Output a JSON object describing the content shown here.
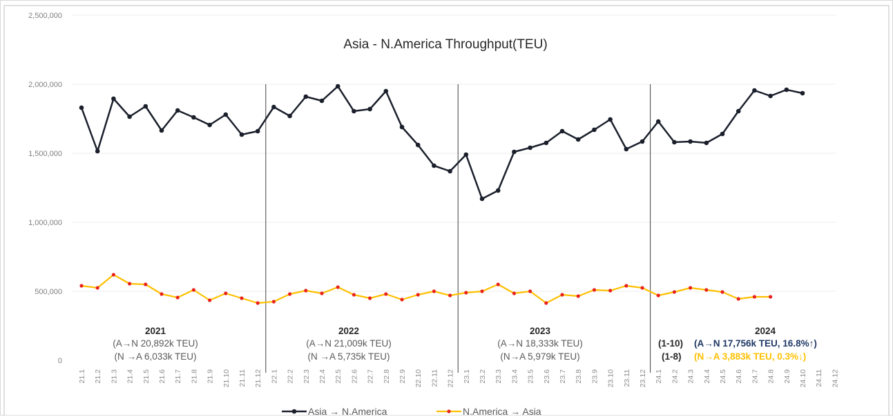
{
  "chart_data": {
    "type": "line",
    "title": "Asia - N.America Throughput(TEU)",
    "xlabel": "",
    "ylabel": "",
    "ylim": [
      0,
      2500000
    ],
    "yticks": [
      "0",
      "500,000",
      "1,000,000",
      "1,500,000",
      "2,000,000",
      "2,500,000"
    ],
    "grid": true,
    "legend_position": "bottom",
    "categories": [
      "21.1",
      "21.2",
      "21.3",
      "21.4",
      "21.5",
      "21.6",
      "21.7",
      "21.8",
      "21.9",
      "21.10",
      "21.11",
      "21.12",
      "22.1",
      "22.2",
      "22.3",
      "22.4",
      "22.5",
      "22.6",
      "22.7",
      "22.8",
      "22.9",
      "22.10",
      "22.11",
      "22.12",
      "23.1",
      "23.2",
      "23.3",
      "23.4",
      "23.5",
      "23.6",
      "23.7",
      "23.8",
      "23.9",
      "23.10",
      "23.11",
      "23.12",
      "24.1",
      "24.2",
      "24.3",
      "24.4",
      "24.5",
      "24.6",
      "24.7",
      "24.8",
      "24.9",
      "24.10",
      "24.11",
      "24.12"
    ],
    "series": [
      {
        "name": "Asia → N.America",
        "color": "#1a1f2b",
        "values": [
          1830000,
          1515000,
          1895000,
          1765000,
          1840000,
          1665000,
          1810000,
          1760000,
          1705000,
          1780000,
          1635000,
          1660000,
          1835000,
          1770000,
          1910000,
          1880000,
          1985000,
          1805000,
          1820000,
          1950000,
          1690000,
          1560000,
          1410000,
          1370000,
          1490000,
          1170000,
          1230000,
          1510000,
          1540000,
          1575000,
          1660000,
          1600000,
          1670000,
          1745000,
          1530000,
          1585000,
          1730000,
          1580000,
          1585000,
          1575000,
          1640000,
          1805000,
          1955000,
          1915000,
          1960000,
          1935000,
          null,
          null
        ]
      },
      {
        "name": "N.America → Asia",
        "color": "#ffc000",
        "marker_color": "#e8231c",
        "values": [
          540000,
          525000,
          620000,
          555000,
          550000,
          480000,
          455000,
          510000,
          435000,
          485000,
          450000,
          415000,
          425000,
          480000,
          505000,
          485000,
          530000,
          475000,
          450000,
          480000,
          440000,
          475000,
          500000,
          470000,
          490000,
          500000,
          550000,
          485000,
          500000,
          415000,
          475000,
          465000,
          510000,
          505000,
          540000,
          525000,
          470000,
          495000,
          525000,
          510000,
          495000,
          445000,
          460000,
          460000,
          null,
          null,
          null,
          null
        ]
      }
    ],
    "annotations": [
      {
        "year": "2021",
        "line1": "(A→N  20,892k TEU)",
        "line2": "(N →A   6,033k TEU)"
      },
      {
        "year": "2022",
        "line1": "(A→N  21,009k TEU)",
        "line2": "(N →A   5,735k TEU)"
      },
      {
        "year": "2023",
        "line1": "(A→N  18,333k TEU)",
        "line2": "(N→A   5,979k TEU)"
      },
      {
        "year": "2024",
        "prefix1": "(1-10)",
        "line1": "(A→N 17,756k TEU, 16.8%↑)",
        "prefix2": "(1-8)",
        "line2": "(N→A   3,883k TEU, 0.3%↓)"
      }
    ]
  }
}
